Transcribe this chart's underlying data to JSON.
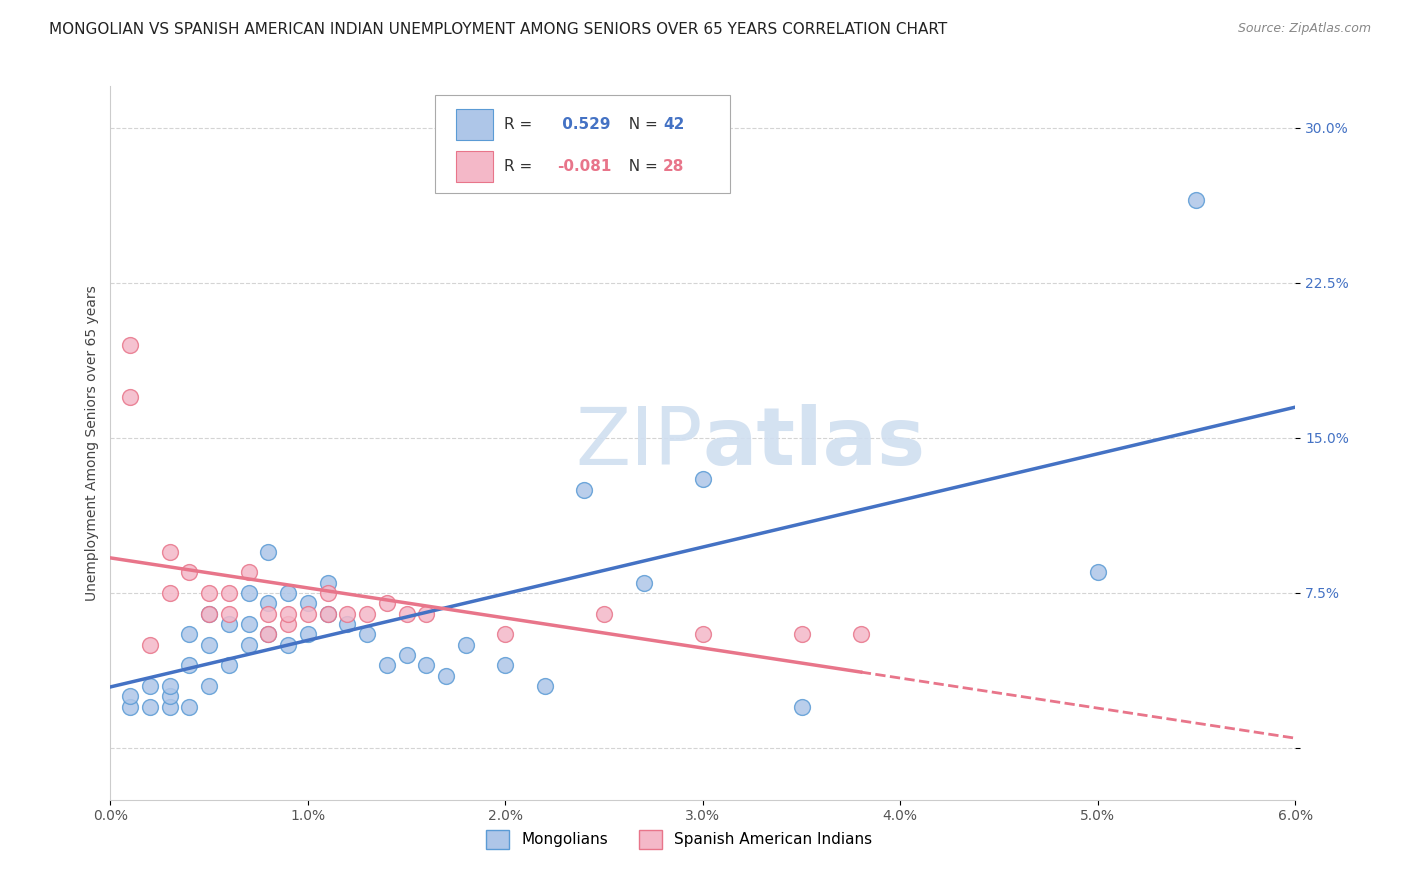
{
  "title": "MONGOLIAN VS SPANISH AMERICAN INDIAN UNEMPLOYMENT AMONG SENIORS OVER 65 YEARS CORRELATION CHART",
  "source": "Source: ZipAtlas.com",
  "ylabel": "Unemployment Among Seniors over 65 years",
  "xlim": [
    0.0,
    0.06
  ],
  "ylim": [
    -0.025,
    0.32
  ],
  "xtick_positions": [
    0.0,
    0.01,
    0.02,
    0.03,
    0.04,
    0.05,
    0.06
  ],
  "xtick_labels": [
    "0.0%",
    "1.0%",
    "2.0%",
    "3.0%",
    "4.0%",
    "5.0%",
    "6.0%"
  ],
  "ytick_positions": [
    0.0,
    0.075,
    0.15,
    0.225,
    0.3
  ],
  "ytick_labels": [
    "",
    "7.5%",
    "15.0%",
    "22.5%",
    "30.0%"
  ],
  "mongolian_R": 0.529,
  "mongolian_N": 42,
  "spanish_R": -0.081,
  "spanish_N": 28,
  "mongolian_color": "#aec6e8",
  "mongolian_edge_color": "#5b9bd5",
  "spanish_color": "#f4b8c8",
  "spanish_edge_color": "#e8758a",
  "mongolian_line_color": "#4472c4",
  "spanish_line_color": "#e8758a",
  "grid_color": "#d0d0d0",
  "watermark_color": "#d0dff0",
  "mongolian_x": [
    0.001,
    0.001,
    0.002,
    0.002,
    0.003,
    0.003,
    0.003,
    0.004,
    0.004,
    0.004,
    0.005,
    0.005,
    0.005,
    0.006,
    0.006,
    0.007,
    0.007,
    0.007,
    0.008,
    0.008,
    0.008,
    0.009,
    0.009,
    0.01,
    0.01,
    0.011,
    0.011,
    0.012,
    0.013,
    0.014,
    0.015,
    0.016,
    0.017,
    0.018,
    0.02,
    0.022,
    0.024,
    0.027,
    0.03,
    0.035,
    0.05,
    0.055
  ],
  "mongolian_y": [
    0.02,
    0.025,
    0.02,
    0.03,
    0.02,
    0.025,
    0.03,
    0.02,
    0.04,
    0.055,
    0.03,
    0.05,
    0.065,
    0.04,
    0.06,
    0.05,
    0.06,
    0.075,
    0.055,
    0.07,
    0.095,
    0.05,
    0.075,
    0.055,
    0.07,
    0.065,
    0.08,
    0.06,
    0.055,
    0.04,
    0.045,
    0.04,
    0.035,
    0.05,
    0.04,
    0.03,
    0.125,
    0.08,
    0.13,
    0.02,
    0.085,
    0.265
  ],
  "spanish_x": [
    0.001,
    0.001,
    0.002,
    0.003,
    0.003,
    0.004,
    0.005,
    0.005,
    0.006,
    0.006,
    0.007,
    0.008,
    0.008,
    0.009,
    0.009,
    0.01,
    0.011,
    0.011,
    0.012,
    0.013,
    0.014,
    0.015,
    0.016,
    0.02,
    0.025,
    0.03,
    0.035,
    0.038
  ],
  "spanish_y": [
    0.195,
    0.17,
    0.05,
    0.095,
    0.075,
    0.085,
    0.065,
    0.075,
    0.065,
    0.075,
    0.085,
    0.055,
    0.065,
    0.06,
    0.065,
    0.065,
    0.065,
    0.075,
    0.065,
    0.065,
    0.07,
    0.065,
    0.065,
    0.055,
    0.065,
    0.055,
    0.055,
    0.055
  ],
  "title_fontsize": 11,
  "axis_label_fontsize": 10,
  "tick_fontsize": 10,
  "legend_fontsize": 11
}
